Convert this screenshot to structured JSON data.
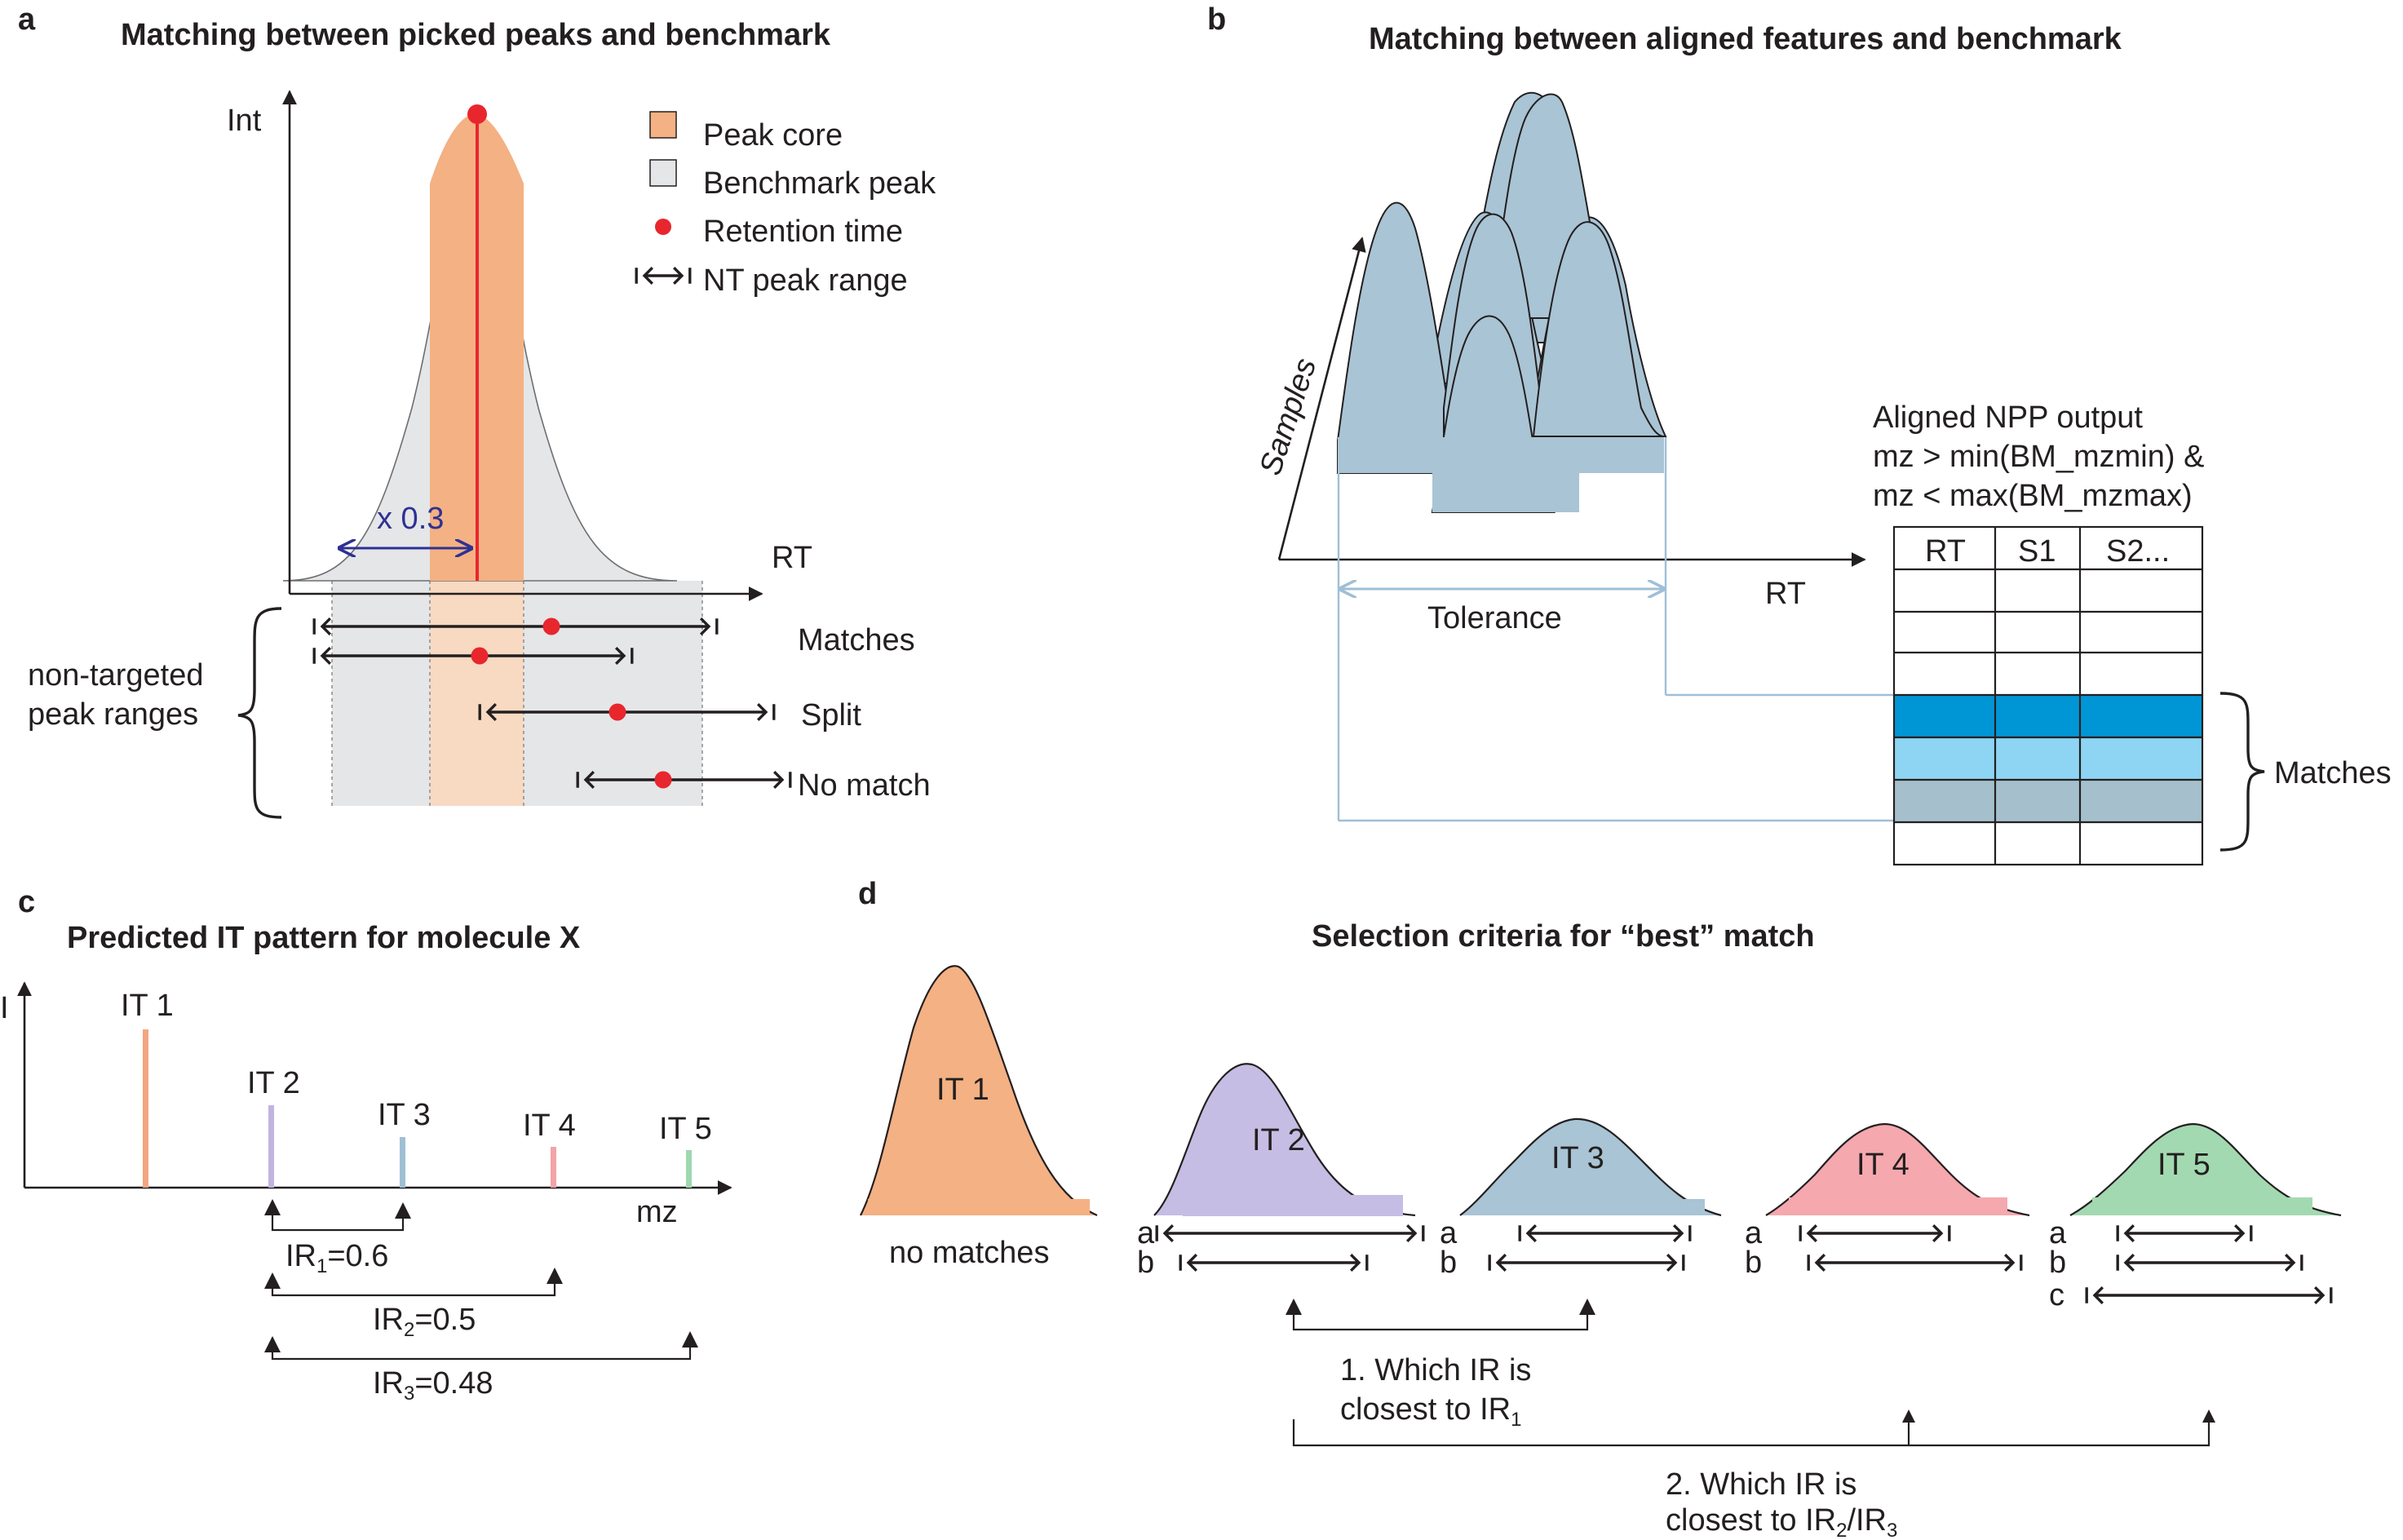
{
  "panel_a": {
    "letter": "a",
    "title": "Matching between picked peaks and benchmark",
    "y_axis": "Int",
    "x_axis": "RT",
    "legend": {
      "peak_core": "Peak core",
      "benchmark_peak": "Benchmark peak",
      "retention_time": "Retention time",
      "nt_peak_range": "NT peak range"
    },
    "multiplier": "x 0.3",
    "range_label_line1": "non-targeted",
    "range_label_line2": "peak ranges",
    "outcomes": {
      "matches": "Matches",
      "split": "Split",
      "no_match": "No match"
    },
    "colors": {
      "peak_core": "#f4b183",
      "benchmark": "#e4e6e8",
      "retention": "#e8262d",
      "arrow": "#2e3192"
    }
  },
  "panel_b": {
    "letter": "b",
    "title": "Matching between aligned features and benchmark",
    "samples_axis": "Samples",
    "x_axis": "RT",
    "tolerance": "Tolerance",
    "output_title": "Aligned NPP output",
    "condition_1": "mz > min(BM_mzmin) &",
    "condition_2": "mz < max(BM_mzmax)",
    "table_headers": [
      "RT",
      "S1",
      "S2..."
    ],
    "matches": "Matches",
    "colors": {
      "peak": "#a9c4d4",
      "row_1": "#0096d6",
      "row_2": "#8dd5f2",
      "row_3": "#a5c0cc",
      "connector": "#9fbfd6"
    }
  },
  "panel_c": {
    "letter": "c",
    "title": "Predicted IT pattern for molecule X",
    "y_axis": "I",
    "x_axis": "mz",
    "peaks": [
      {
        "label": "IT 1",
        "color": "#f4a582"
      },
      {
        "label": "IT 2",
        "color": "#c2b4e0"
      },
      {
        "label": "IT 3",
        "color": "#9ec0d4"
      },
      {
        "label": "IT 4",
        "color": "#f4a3a8"
      },
      {
        "label": "IT 5",
        "color": "#9fd8b0"
      }
    ],
    "ratios": [
      {
        "name": "IR",
        "sub": "1",
        "value": "=0.6"
      },
      {
        "name": "IR",
        "sub": "2",
        "value": "=0.5"
      },
      {
        "name": "IR",
        "sub": "3",
        "value": "=0.48"
      }
    ]
  },
  "panel_d": {
    "letter": "d",
    "title": "Selection criteria for “best” match",
    "peaks": [
      {
        "label": "IT 1",
        "color": "#f4b183",
        "note": "no matches",
        "ranges": []
      },
      {
        "label": "IT 2",
        "color": "#c5bde3",
        "ranges": [
          "a",
          "b"
        ]
      },
      {
        "label": "IT 3",
        "color": "#a9c4d4",
        "ranges": [
          "a",
          "b"
        ]
      },
      {
        "label": "IT 4",
        "color": "#f5a8ae",
        "ranges": [
          "a",
          "b"
        ]
      },
      {
        "label": "IT 5",
        "color": "#a3d9b1",
        "ranges": [
          "a",
          "b",
          "c"
        ]
      }
    ],
    "criterion_1_line1": "1. Which IR is",
    "criterion_1_line2": "closest to IR",
    "criterion_1_sub": "1",
    "criterion_2_line1": "2. Which IR is",
    "criterion_2_line2": "closest to IR",
    "criterion_2_sub_a": "2",
    "criterion_2_mid": "/IR",
    "criterion_2_sub_b": "3"
  }
}
